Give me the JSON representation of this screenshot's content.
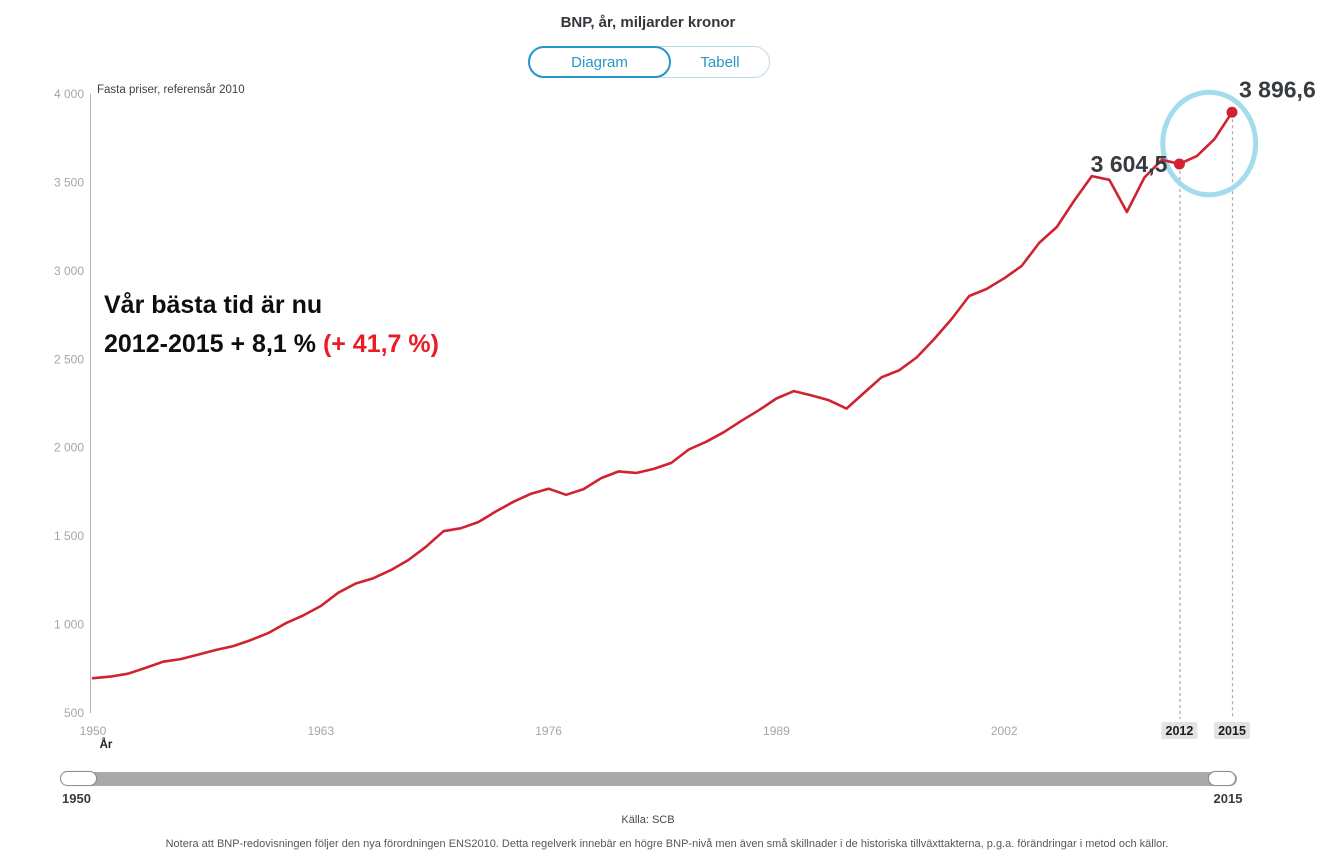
{
  "header": {
    "title": "BNP, år, miljarder kronor",
    "tabs": [
      {
        "label": "Diagram",
        "active": true
      },
      {
        "label": "Tabell",
        "active": false
      }
    ]
  },
  "chart_data": {
    "type": "line",
    "title": "BNP, år, miljarder kronor",
    "subtitle": "Fasta priser, referensår 2010",
    "xlabel": "År",
    "ylabel": "",
    "xlim": [
      1950,
      2015
    ],
    "ylim": [
      500,
      4000
    ],
    "grid": false,
    "legend": "none",
    "line_color": "#cf2331",
    "axis_color": "#b3b3b3",
    "tick_label_color": "#a6a6a6",
    "y_ticks": [
      4000,
      3500,
      3000,
      2500,
      2000,
      1500,
      1000,
      500
    ],
    "y_tick_labels": [
      "4 000",
      "3 500",
      "3 000",
      "2 500",
      "2 000",
      "1 500",
      "1 000",
      "500"
    ],
    "x_ticks": [
      1950,
      1963,
      1976,
      1989,
      2002
    ],
    "highlighted_x_ticks": [
      2012,
      2015
    ],
    "series": [
      {
        "name": "BNP, fasta priser referensår 2010 (miljarder kronor)",
        "x": [
          1950,
          1951,
          1952,
          1953,
          1954,
          1955,
          1956,
          1957,
          1958,
          1959,
          1960,
          1961,
          1962,
          1963,
          1964,
          1965,
          1966,
          1967,
          1968,
          1969,
          1970,
          1971,
          1972,
          1973,
          1974,
          1975,
          1976,
          1977,
          1978,
          1979,
          1980,
          1981,
          1982,
          1983,
          1984,
          1985,
          1986,
          1987,
          1988,
          1989,
          1990,
          1991,
          1992,
          1993,
          1994,
          1995,
          1996,
          1997,
          1998,
          1999,
          2000,
          2001,
          2002,
          2003,
          2004,
          2005,
          2006,
          2007,
          2008,
          2009,
          2010,
          2011,
          2012,
          2013,
          2014,
          2015
        ],
        "values": [
          697,
          706,
          722,
          755,
          790,
          805,
          830,
          856,
          878,
          912,
          952,
          1008,
          1052,
          1105,
          1180,
          1232,
          1262,
          1308,
          1365,
          1440,
          1528,
          1545,
          1580,
          1640,
          1695,
          1740,
          1768,
          1734,
          1766,
          1828,
          1866,
          1857,
          1880,
          1914,
          1990,
          2034,
          2088,
          2152,
          2212,
          2278,
          2320,
          2296,
          2268,
          2221,
          2310,
          2398,
          2438,
          2510,
          2614,
          2728,
          2858,
          2898,
          2958,
          3028,
          3158,
          3248,
          3398,
          3536,
          3515,
          3333,
          3528,
          3628,
          3604.5,
          3650,
          3745,
          3896.6
        ]
      }
    ],
    "markers": [
      {
        "x": 2012,
        "value": 3604.5,
        "label": "3 604,5",
        "label_side": "left"
      },
      {
        "x": 2015,
        "value": 3896.6,
        "label": "3 896,6",
        "label_side": "right"
      }
    ],
    "ellipse_annotation": {
      "cx_year": 2013.7,
      "cy_value": 3720,
      "rx_years": 2.65,
      "ry_value": 290,
      "color": "#a5dced"
    },
    "text_annotation": {
      "line1": "Vår bästa tid är nu",
      "line2": "2012-2015 + 8,1 %",
      "line2_highlight": "(+ 41,7 %)",
      "highlight_color": "#ea1c24"
    }
  },
  "slider": {
    "min_label": "1950",
    "max_label": "2015"
  },
  "footer": {
    "source": "Källa: SCB",
    "note": "Notera att BNP-redovisningen följer den nya förordningen ENS2010. Detta regelverk innebär en högre BNP-nivå men även små skillnader i de historiska tillväxttakterna, p.g.a. förändringar i metod och källor."
  }
}
